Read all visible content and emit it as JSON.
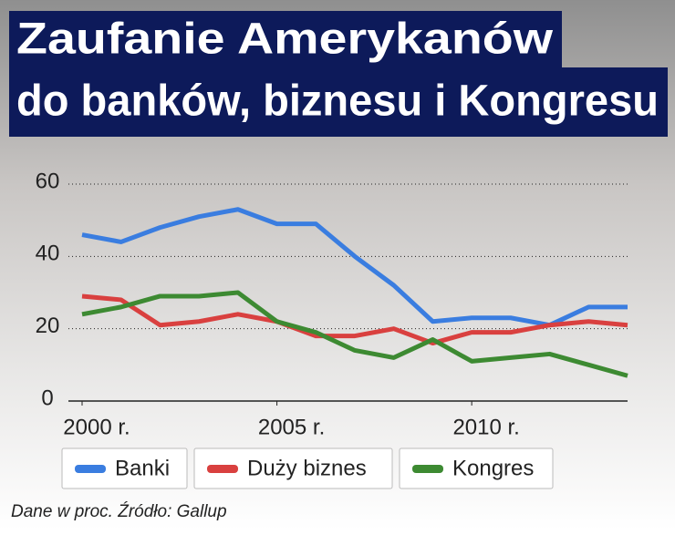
{
  "chart_data": {
    "type": "line",
    "title": [
      "Zaufanie Amerykanów",
      "do banków, biznesu i Kongresu"
    ],
    "x": [
      2000,
      2001,
      2002,
      2003,
      2004,
      2005,
      2006,
      2007,
      2008,
      2009,
      2010,
      2011,
      2012,
      2013,
      2014
    ],
    "series": [
      {
        "name": "Banki",
        "color": "#3a7de0",
        "values": [
          46,
          44,
          48,
          51,
          53,
          49,
          49,
          40,
          32,
          22,
          23,
          23,
          21,
          26,
          26
        ]
      },
      {
        "name": "Duży biznes",
        "color": "#d9403f",
        "values": [
          29,
          28,
          21,
          22,
          24,
          22,
          18,
          18,
          20,
          16,
          19,
          19,
          21,
          22,
          21
        ]
      },
      {
        "name": "Kongres",
        "color": "#3d8a32",
        "values": [
          24,
          26,
          29,
          29,
          30,
          22,
          19,
          14,
          12,
          17,
          11,
          12,
          13,
          10,
          7
        ]
      }
    ],
    "xlim": [
      2000,
      2014
    ],
    "xticks": [
      {
        "value": 2000,
        "label": "2000 r."
      },
      {
        "value": 2005,
        "label": "2005 r."
      },
      {
        "value": 2010,
        "label": "2010 r."
      }
    ],
    "ylim": [
      0,
      60
    ],
    "yticks": [
      0,
      20,
      40,
      60
    ],
    "grid": true,
    "note": "Dane w proc. Źródło: Gallup"
  }
}
